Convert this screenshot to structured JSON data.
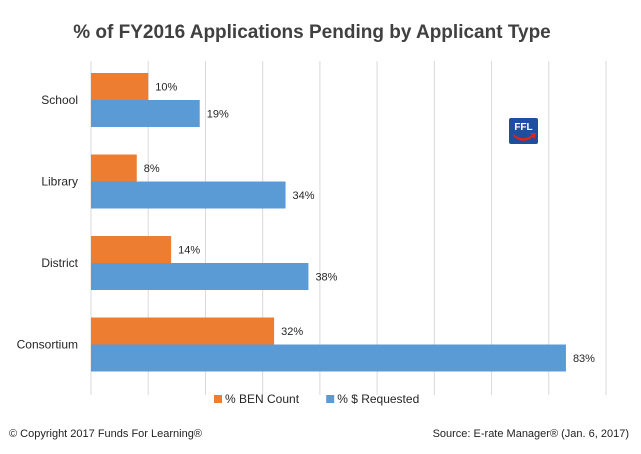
{
  "chart_data": {
    "type": "bar",
    "orientation": "horizontal",
    "title": "% of FY2016 Applications Pending by Applicant Type",
    "categories": [
      "School",
      "Library",
      "District",
      "Consortium"
    ],
    "series": [
      {
        "name": "% BEN Count",
        "values": [
          10,
          8,
          14,
          32
        ],
        "color": "#ED7D31"
      },
      {
        "name": "% $ Requested",
        "values": [
          19,
          34,
          38,
          83
        ],
        "color": "#5B9BD5"
      }
    ],
    "value_suffix": "%",
    "xlim": [
      0,
      90
    ],
    "grid": "vertical",
    "legend_position": "bottom"
  },
  "logo": {
    "text": "FFL",
    "colors": {
      "background": "#1F4E9E",
      "arrow": "#E2231A"
    }
  },
  "footer": {
    "copyright": "© Copyright 2017 Funds For Learning®",
    "source": "Source: E-rate Manager® (Jan. 6, 2017)"
  },
  "colors": {
    "grid": "#D9D9D9",
    "text": "#262626"
  }
}
